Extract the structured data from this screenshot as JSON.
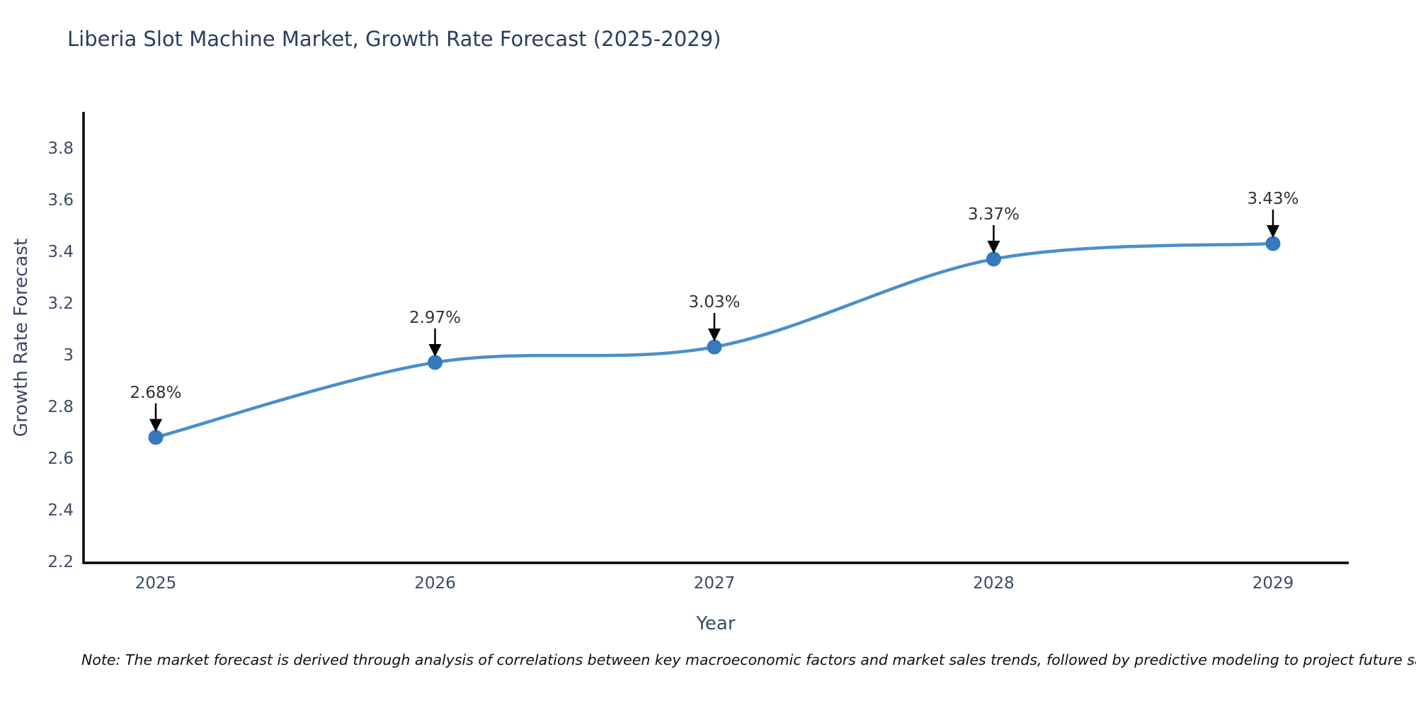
{
  "chart_data": {
    "type": "line",
    "title": "Liberia Slot Machine Market, Growth Rate Forecast (2025-2029)",
    "xlabel": "Year",
    "ylabel": "Growth Rate Forecast",
    "categories": [
      "2025",
      "2026",
      "2027",
      "2028",
      "2029"
    ],
    "values": [
      2.68,
      2.97,
      3.03,
      3.37,
      3.43
    ],
    "point_labels": [
      "2.68%",
      "2.97%",
      "3.03%",
      "3.37%",
      "3.43%"
    ],
    "yticks": [
      2.2,
      2.4,
      2.6,
      2.8,
      3,
      3.2,
      3.4,
      3.6,
      3.8
    ],
    "ytick_labels": [
      "2.2",
      "2.4",
      "2.6",
      "2.8",
      "3",
      "3.2",
      "3.4",
      "3.6",
      "3.8"
    ],
    "ylim": [
      2.2,
      3.9
    ],
    "grid": false,
    "legend": "none",
    "line_color": "#4a8fc9",
    "marker_color": "#3679bd",
    "axis_color": "#000000",
    "annotation_color": "#333333",
    "title_color": "#2a3f5f",
    "note": "Note: The market forecast is derived through analysis of correlations between key macroeconomic factors and market sales trends, followed by predictive modeling to project future sales"
  }
}
